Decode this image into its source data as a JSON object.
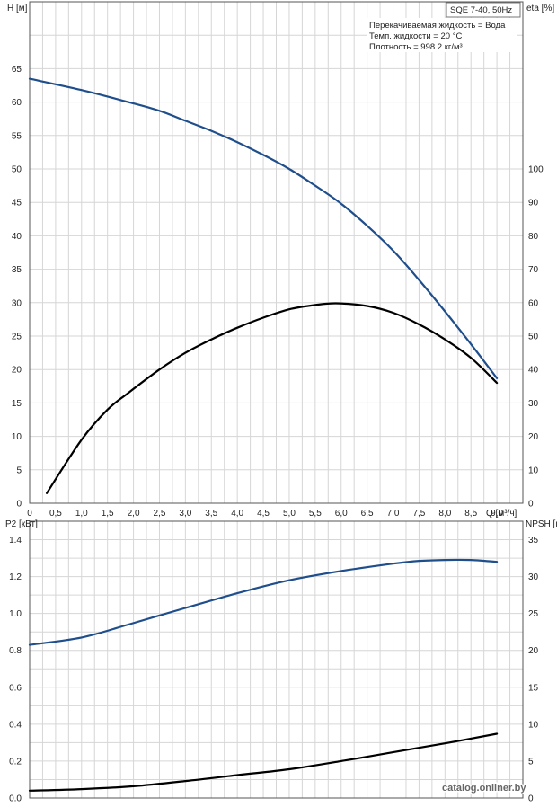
{
  "header": {
    "model": "SQE 7-40, 50Hz",
    "info_lines": [
      "Перекачиваемая жидкость = Вода",
      "Темп. жидкости = 20 °C",
      "Плотность = 998.2 кг/м³"
    ]
  },
  "watermark": "catalog.onliner.by",
  "chart_data": [
    {
      "type": "line",
      "xlabel": "Q [м³/ч]",
      "ylabel": "H [м]",
      "y2label": "eta [%]",
      "xlim": [
        0,
        9.5
      ],
      "ylim": [
        0,
        75
      ],
      "y2lim": [
        0,
        150
      ],
      "x_ticks": [
        "0",
        "0,5",
        "1,0",
        "1,5",
        "2,0",
        "2,5",
        "3,0",
        "3,5",
        "4,0",
        "4,5",
        "5,0",
        "5,5",
        "6,0",
        "6,5",
        "7,0",
        "7,5",
        "8,0",
        "8,5",
        "9,0"
      ],
      "y_ticks": [
        0,
        5,
        10,
        15,
        20,
        25,
        30,
        35,
        40,
        45,
        50,
        55,
        60,
        65
      ],
      "y2_ticks": [
        0,
        10,
        20,
        30,
        40,
        50,
        60,
        70,
        80,
        90,
        100
      ],
      "grid": true,
      "series": [
        {
          "axis": "left",
          "color": "#1f4e8c",
          "x": [
            0,
            1.0,
            1.9,
            2.5,
            3.0,
            3.5,
            4.0,
            4.5,
            5.0,
            5.5,
            6.0,
            6.5,
            7.0,
            7.5,
            8.0,
            8.5,
            9.0
          ],
          "y": [
            63.5,
            61.8,
            60.0,
            58.7,
            57.2,
            55.7,
            54.0,
            52.1,
            50.0,
            47.5,
            44.8,
            41.5,
            37.8,
            33.4,
            28.7,
            23.8,
            18.7
          ]
        },
        {
          "axis": "right",
          "color": "#000000",
          "x": [
            0.33,
            1.0,
            1.5,
            1.9,
            2.5,
            3.0,
            3.5,
            4.0,
            4.5,
            5.0,
            5.5,
            5.9,
            6.5,
            7.0,
            7.5,
            8.0,
            8.5,
            9.0
          ],
          "y": [
            3,
            19,
            28,
            33,
            40,
            45,
            49,
            52.5,
            55.5,
            58,
            59.3,
            59.8,
            59,
            57,
            53.5,
            49,
            43.5,
            36
          ]
        }
      ]
    },
    {
      "type": "line",
      "ylabel": "P2 [кВт]",
      "y2label": "NPSH [м]",
      "xlim": [
        0,
        9.5
      ],
      "ylim": [
        0,
        1.5
      ],
      "y2lim": [
        0,
        37.5
      ],
      "y_ticks": [
        "0.0",
        "0.2",
        "0.4",
        "0.6",
        "0.8",
        "1.0",
        "1.2",
        "1.4"
      ],
      "y2_ticks": [
        0,
        5,
        10,
        15,
        20,
        25,
        30,
        35
      ],
      "grid": true,
      "series": [
        {
          "axis": "left",
          "color": "#1f4e8c",
          "x": [
            0,
            1.0,
            1.9,
            3.0,
            4.0,
            5.0,
            6.0,
            7.0,
            7.5,
            8.0,
            8.5,
            9.0
          ],
          "y": [
            0.83,
            0.87,
            0.94,
            1.03,
            1.11,
            1.18,
            1.23,
            1.27,
            1.285,
            1.29,
            1.29,
            1.28
          ]
        },
        {
          "axis": "right",
          "color": "#000000",
          "x": [
            0,
            1.0,
            2.0,
            3.0,
            4.0,
            5.0,
            6.0,
            7.0,
            8.0,
            9.0
          ],
          "y": [
            1.0,
            1.2,
            1.6,
            2.3,
            3.1,
            3.9,
            5.0,
            6.2,
            7.4,
            8.7
          ]
        }
      ]
    }
  ]
}
